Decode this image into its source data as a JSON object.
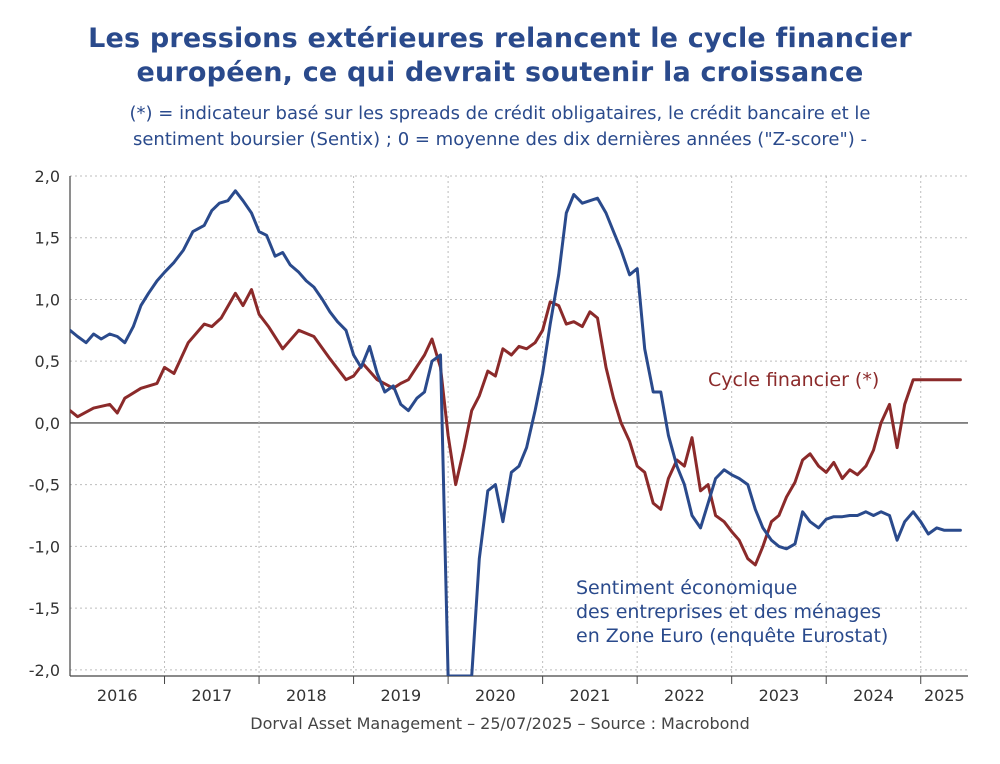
{
  "title": {
    "line1": "Les pressions extérieures relancent le cycle financier",
    "line2": "européen, ce qui devrait soutenir la croissance"
  },
  "subtitle": {
    "line1": "(*) = indicateur basé sur les spreads de crédit obligataires, le crédit bancaire et le",
    "line2": "sentiment boursier (Sentix) ; 0 = moyenne des dix dernières années (\"Z-score\") -"
  },
  "footer": "Dorval Asset Management – 25/07/2025 –   Source : Macrobond",
  "labels": {
    "cycle": "Cycle financier (*)",
    "sentiment_l1": "Sentiment économique",
    "sentiment_l2": "des entreprises et des ménages",
    "sentiment_l3": "en Zone Euro (enquête Eurostat)"
  },
  "colors": {
    "cycle": "#8b2a2a",
    "sentiment": "#2a4a8c",
    "grid": "#bdbdbd",
    "axis": "#444444"
  },
  "chart_data": {
    "type": "line",
    "title": "Les pressions extérieures relancent le cycle financier européen, ce qui devrait soutenir la croissance",
    "xlabel": "",
    "ylabel": "",
    "xlim": [
      2016.0,
      2025.5
    ],
    "ylim": [
      -2.05,
      2.0
    ],
    "yticks": [
      2.0,
      1.5,
      1.0,
      0.5,
      0.0,
      -0.5,
      -1.0,
      -1.5,
      -2.0
    ],
    "ytick_labels": [
      "2,0",
      "1,5",
      "1,0",
      "0,5",
      "0,0",
      "-0,5",
      "-1,0",
      "-1,5",
      "-2,0"
    ],
    "xtick_labels": [
      "2016",
      "2017",
      "2018",
      "2019",
      "2020",
      "2021",
      "2022",
      "2023",
      "2024",
      "2025"
    ],
    "grid": true,
    "series": [
      {
        "name": "Cycle financier (*)",
        "x": [
          2016.0,
          2016.08,
          2016.25,
          2016.42,
          2016.5,
          2016.58,
          2016.75,
          2016.92,
          2017.0,
          2017.1,
          2017.25,
          2017.42,
          2017.5,
          2017.6,
          2017.75,
          2017.83,
          2017.92,
          2018.0,
          2018.1,
          2018.25,
          2018.42,
          2018.58,
          2018.75,
          2018.92,
          2019.0,
          2019.1,
          2019.25,
          2019.42,
          2019.5,
          2019.58,
          2019.75,
          2019.83,
          2019.92,
          2020.0,
          2020.08,
          2020.17,
          2020.25,
          2020.33,
          2020.42,
          2020.5,
          2020.58,
          2020.67,
          2020.75,
          2020.83,
          2020.92,
          2021.0,
          2021.08,
          2021.17,
          2021.25,
          2021.33,
          2021.42,
          2021.5,
          2021.58,
          2021.67,
          2021.75,
          2021.83,
          2021.92,
          2022.0,
          2022.08,
          2022.17,
          2022.25,
          2022.33,
          2022.42,
          2022.5,
          2022.58,
          2022.67,
          2022.75,
          2022.83,
          2022.92,
          2023.0,
          2023.08,
          2023.17,
          2023.25,
          2023.33,
          2023.42,
          2023.5,
          2023.58,
          2023.67,
          2023.75,
          2023.83,
          2023.92,
          2024.0,
          2024.08,
          2024.17,
          2024.25,
          2024.33,
          2024.42,
          2024.5,
          2024.58,
          2024.67,
          2024.75,
          2024.83,
          2024.92,
          2025.0,
          2025.08,
          2025.17,
          2025.25,
          2025.33,
          2025.42
        ],
        "values": [
          0.1,
          0.05,
          0.12,
          0.15,
          0.08,
          0.2,
          0.28,
          0.32,
          0.45,
          0.4,
          0.65,
          0.8,
          0.78,
          0.85,
          1.05,
          0.95,
          1.08,
          0.88,
          0.78,
          0.6,
          0.75,
          0.7,
          0.52,
          0.35,
          0.38,
          0.48,
          0.35,
          0.28,
          0.32,
          0.35,
          0.55,
          0.68,
          0.45,
          -0.1,
          -0.5,
          -0.2,
          0.1,
          0.22,
          0.42,
          0.38,
          0.6,
          0.55,
          0.62,
          0.6,
          0.65,
          0.75,
          0.98,
          0.95,
          0.8,
          0.82,
          0.78,
          0.9,
          0.85,
          0.45,
          0.2,
          0.0,
          -0.15,
          -0.35,
          -0.4,
          -0.65,
          -0.7,
          -0.45,
          -0.3,
          -0.35,
          -0.12,
          -0.55,
          -0.5,
          -0.75,
          -0.8,
          -0.88,
          -0.95,
          -1.1,
          -1.15,
          -1.0,
          -0.8,
          -0.75,
          -0.6,
          -0.48,
          -0.3,
          -0.25,
          -0.35,
          -0.4,
          -0.32,
          -0.45,
          -0.38,
          -0.42,
          -0.35,
          -0.22,
          0.0,
          0.15,
          -0.2,
          0.15,
          0.35,
          0.35,
          0.35,
          0.35,
          0.35,
          0.35,
          0.35
        ]
      },
      {
        "name": "Sentiment économique des entreprises et des ménages en Zone Euro (enquête Eurostat)",
        "x": [
          2016.0,
          2016.08,
          2016.17,
          2016.25,
          2016.33,
          2016.42,
          2016.5,
          2016.58,
          2016.67,
          2016.75,
          2016.83,
          2016.92,
          2017.0,
          2017.1,
          2017.2,
          2017.3,
          2017.42,
          2017.5,
          2017.58,
          2017.67,
          2017.75,
          2017.83,
          2017.92,
          2018.0,
          2018.08,
          2018.17,
          2018.25,
          2018.33,
          2018.42,
          2018.5,
          2018.58,
          2018.67,
          2018.75,
          2018.83,
          2018.92,
          2019.0,
          2019.08,
          2019.17,
          2019.25,
          2019.33,
          2019.42,
          2019.5,
          2019.58,
          2019.67,
          2019.75,
          2019.83,
          2019.92,
          2020.0,
          2020.08,
          2020.17,
          2020.25,
          2020.33,
          2020.42,
          2020.5,
          2020.58,
          2020.67,
          2020.75,
          2020.83,
          2020.92,
          2021.0,
          2021.08,
          2021.17,
          2021.25,
          2021.33,
          2021.42,
          2021.5,
          2021.58,
          2021.67,
          2021.75,
          2021.83,
          2021.92,
          2022.0,
          2022.08,
          2022.17,
          2022.25,
          2022.33,
          2022.42,
          2022.5,
          2022.58,
          2022.67,
          2022.75,
          2022.83,
          2022.92,
          2023.0,
          2023.08,
          2023.17,
          2023.25,
          2023.33,
          2023.42,
          2023.5,
          2023.58,
          2023.67,
          2023.75,
          2023.83,
          2023.92,
          2024.0,
          2024.08,
          2024.17,
          2024.25,
          2024.33,
          2024.42,
          2024.5,
          2024.58,
          2024.67,
          2024.75,
          2024.83,
          2024.92,
          2025.0,
          2025.08,
          2025.17,
          2025.25,
          2025.33,
          2025.42
        ],
        "values": [
          0.75,
          0.7,
          0.65,
          0.72,
          0.68,
          0.72,
          0.7,
          0.65,
          0.78,
          0.95,
          1.05,
          1.15,
          1.22,
          1.3,
          1.4,
          1.55,
          1.6,
          1.72,
          1.78,
          1.8,
          1.88,
          1.8,
          1.7,
          1.55,
          1.52,
          1.35,
          1.38,
          1.28,
          1.22,
          1.15,
          1.1,
          1.0,
          0.9,
          0.82,
          0.75,
          0.55,
          0.45,
          0.62,
          0.4,
          0.25,
          0.3,
          0.15,
          0.1,
          0.2,
          0.25,
          0.5,
          0.55,
          -2.05,
          -2.05,
          -2.05,
          -2.05,
          -1.1,
          -0.55,
          -0.5,
          -0.8,
          -0.4,
          -0.35,
          -0.2,
          0.1,
          0.4,
          0.8,
          1.2,
          1.7,
          1.85,
          1.78,
          1.8,
          1.82,
          1.7,
          1.55,
          1.4,
          1.2,
          1.25,
          0.6,
          0.25,
          0.25,
          -0.1,
          -0.35,
          -0.5,
          -0.75,
          -0.85,
          -0.65,
          -0.45,
          -0.38,
          -0.42,
          -0.45,
          -0.5,
          -0.7,
          -0.85,
          -0.95,
          -1.0,
          -1.02,
          -0.98,
          -0.72,
          -0.8,
          -0.85,
          -0.78,
          -0.76,
          -0.76,
          -0.75,
          -0.75,
          -0.72,
          -0.75,
          -0.72,
          -0.75,
          -0.95,
          -0.8,
          -0.72,
          -0.8,
          -0.9,
          -0.85,
          -0.87,
          -0.87,
          -0.87
        ]
      }
    ]
  }
}
